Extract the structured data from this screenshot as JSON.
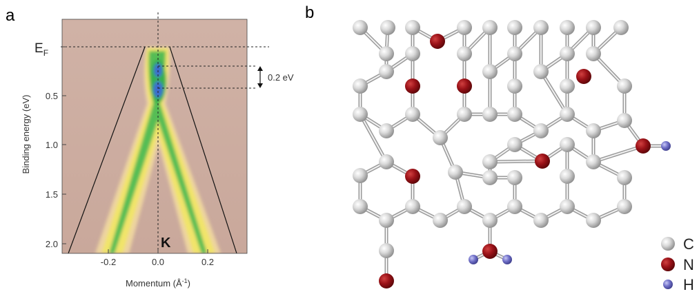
{
  "figure": {
    "panel_a_label": "a",
    "panel_b_label": "b"
  },
  "panel_a": {
    "ylabel": "Binding energy (eV)",
    "xlabel": "Momentum (Å",
    "xlabel_sup": "-1",
    "xlabel_end": ")",
    "fermi_label": "E",
    "fermi_sub": "F",
    "gap_annotation": "0.2 eV",
    "k_point_label": "K",
    "colors": {
      "background": "#c8a699",
      "band_outer": "#f2d98a",
      "band_mid": "#e7e458",
      "band_inner": "#39b54a",
      "dirac_blue": "#3c68c9"
    }
  },
  "chart_data": {
    "type": "heatmap",
    "xlabel": "Momentum (Å-1)",
    "ylabel": "Binding energy (eV)",
    "xlim": [
      -0.37,
      0.38
    ],
    "ylim": [
      2.08,
      -0.03
    ],
    "x_ticks": [
      {
        "value": -0.2,
        "label": "-0.2"
      },
      {
        "value": 0.0,
        "label": "0.0"
      },
      {
        "value": 0.2,
        "label": "0.2"
      }
    ],
    "y_ticks": [
      {
        "value": 0.5,
        "label": "0.5"
      },
      {
        "value": 1.0,
        "label": "1.0"
      },
      {
        "value": 1.5,
        "label": "1.5"
      },
      {
        "value": 2.0,
        "label": "2.0"
      }
    ],
    "fermi_level_eV": 0.0,
    "dashed_lines_eV": [
      0.0,
      0.2,
      0.4
    ],
    "dirac_point_eV": 0.3,
    "band_gap_eV": 0.2,
    "band_lines": [
      {
        "points": [
          [
            -0.05,
            0.0
          ],
          [
            -0.35,
            2.05
          ]
        ]
      },
      {
        "points": [
          [
            0.055,
            0.0
          ],
          [
            0.31,
            2.05
          ]
        ]
      }
    ],
    "annotations": [
      "E_F",
      "0.2 eV",
      "K"
    ]
  },
  "panel_b": {
    "legend": [
      {
        "label": "C",
        "color": "#cfcfcf"
      },
      {
        "label": "N",
        "color": "#a0161b"
      },
      {
        "label": "H",
        "color": "#7070c8"
      }
    ]
  }
}
